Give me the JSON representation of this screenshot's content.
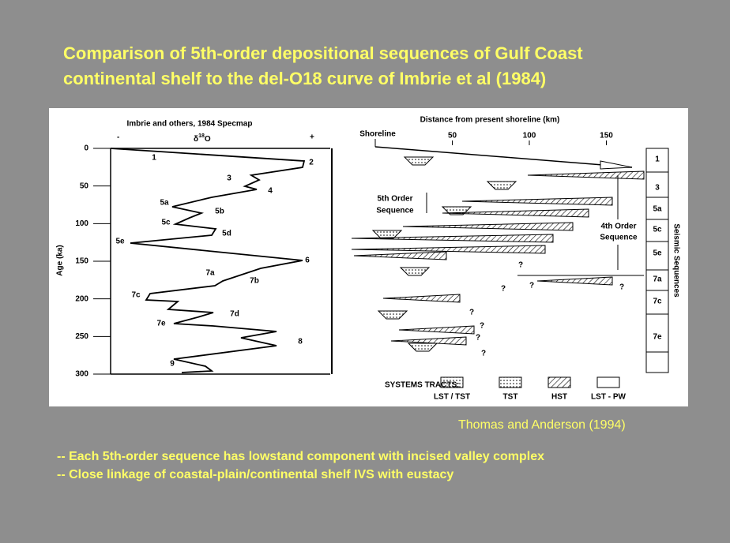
{
  "title": {
    "lines": [
      "Comparison of 5th-order depositional sequences of Gulf Coast",
      "continental shelf to the del-O18 curve of Imbrie et al (1984)"
    ]
  },
  "figure": {
    "left_panel": {
      "header": "Imbrie and others, 1984  Specmap",
      "minus": "-",
      "plus": "+",
      "isotope": {
        "delta": "δ",
        "mass": "18",
        "element": "O"
      },
      "y_axis_label": "Age (ka)",
      "age_ticks": [
        0,
        50,
        100,
        150,
        200,
        250,
        300
      ],
      "stages": [
        "1",
        "2",
        "3",
        "4",
        "5a",
        "5b",
        "5c",
        "5d",
        "5e",
        "6",
        "7a",
        "7b",
        "7c",
        "7d",
        "7e",
        "8",
        "9"
      ]
    },
    "right_panel": {
      "header": "Distance from present shoreline (km)",
      "shoreline": "Shoreline",
      "distance_ticks": [
        50,
        100,
        150
      ],
      "fifth_order": [
        "5th Order",
        "Sequence"
      ],
      "fourth_order": [
        "4th Order",
        "Sequence"
      ],
      "question_marks": [
        "?",
        "?",
        "?",
        "?",
        "?",
        "?",
        "?",
        "?"
      ],
      "seismic_label": "Seismic Sequences",
      "seismic_sequences": [
        "1",
        "3",
        "5a",
        "5c",
        "5e",
        "7a",
        "7c",
        "7e"
      ],
      "systems_tracts": {
        "label": "SYSTEMS TRACTS:",
        "items": [
          "LST / TST",
          "TST",
          "HST",
          "LST - PW"
        ]
      }
    }
  },
  "credit": "Thomas and Anderson (1994)",
  "bullets": [
    "-- Each 5th-order sequence has lowstand component with incised valley complex",
    "-- Close linkage of coastal-plain/continental shelf IVS with eustacy"
  ]
}
